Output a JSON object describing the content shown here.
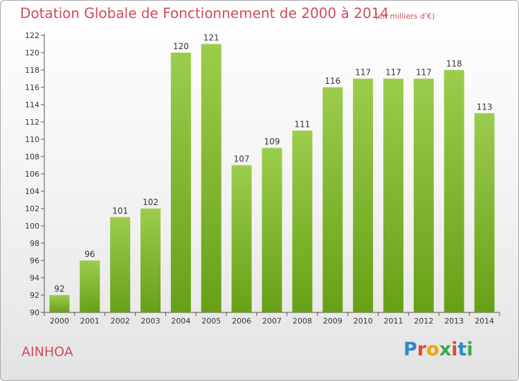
{
  "header": {
    "title": "Dotation Globale de Fonctionnement de 2000 à 2014",
    "subtitle": "(en milliers d'€)"
  },
  "footer": {
    "commune": "AINHOA",
    "logo_letters": [
      {
        "char": "P",
        "color": "#2e88c8"
      },
      {
        "char": "r",
        "color": "#e04a2c"
      },
      {
        "char": "o",
        "color": "#f0a500"
      },
      {
        "char": "x",
        "color": "#3aa84a"
      },
      {
        "char": "i",
        "color": "#e04a2c"
      },
      {
        "char": "t",
        "color": "#2e88c8"
      },
      {
        "char": "i",
        "color": "#3aa84a"
      }
    ]
  },
  "chart_data": {
    "type": "bar",
    "categories": [
      "2000",
      "2001",
      "2002",
      "2003",
      "2004",
      "2005",
      "2006",
      "2007",
      "2008",
      "2009",
      "2010",
      "2011",
      "2012",
      "2013",
      "2014"
    ],
    "values": [
      92,
      96,
      101,
      102,
      120,
      121,
      107,
      109,
      111,
      116,
      117,
      117,
      117,
      118,
      113
    ],
    "data_labels": [
      "92",
      "96",
      "101",
      "102",
      "120",
      "121",
      "107",
      "109",
      "111",
      "116",
      "117",
      "117",
      "117",
      "118",
      "113"
    ],
    "ylim": [
      90,
      122
    ],
    "yticks": [
      90,
      92,
      94,
      96,
      98,
      100,
      102,
      104,
      106,
      108,
      110,
      112,
      114,
      116,
      118,
      120,
      122
    ],
    "grid": false,
    "colors": {
      "bar_light": "#9ccc4c",
      "bar_dark": "#67a017",
      "axis": "#555555",
      "text": "#333333"
    }
  }
}
